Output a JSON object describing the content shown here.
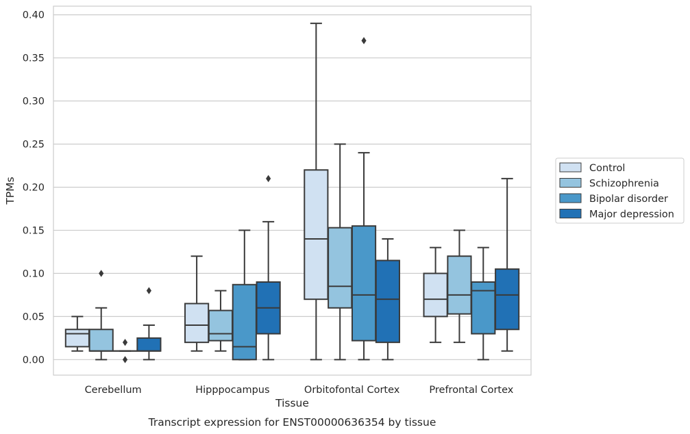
{
  "chart_data": {
    "type": "box",
    "caption": "Transcript expression for ENST00000636354 by tissue",
    "xlabel": "Tissue",
    "ylabel": "TPMs",
    "ylim": [
      -0.018,
      0.41
    ],
    "yticks": [
      0.0,
      0.05,
      0.1,
      0.15,
      0.2,
      0.25,
      0.3,
      0.35,
      0.4
    ],
    "ytick_labels": [
      "0.00",
      "0.05",
      "0.10",
      "0.15",
      "0.20",
      "0.25",
      "0.30",
      "0.35",
      "0.40"
    ],
    "grid": "horizontal",
    "legend_position": "right",
    "categories": [
      "Cerebellum",
      "Hipppocampus",
      "Orbitofontal Cortex",
      "Prefrontal Cortex"
    ],
    "series": [
      {
        "name": "Control",
        "color": "#d0e1f2",
        "boxes": [
          {
            "whislo": 0.01,
            "q1": 0.015,
            "med": 0.03,
            "q3": 0.035,
            "whishi": 0.05,
            "fliers": []
          },
          {
            "whislo": 0.01,
            "q1": 0.02,
            "med": 0.04,
            "q3": 0.065,
            "whishi": 0.12,
            "fliers": []
          },
          {
            "whislo": 0.0,
            "q1": 0.07,
            "med": 0.14,
            "q3": 0.22,
            "whishi": 0.39,
            "fliers": []
          },
          {
            "whislo": 0.02,
            "q1": 0.05,
            "med": 0.07,
            "q3": 0.1,
            "whishi": 0.13,
            "fliers": []
          }
        ]
      },
      {
        "name": "Schizophrenia",
        "color": "#94c4df",
        "boxes": [
          {
            "whislo": 0.0,
            "q1": 0.01,
            "med": 0.01,
            "q3": 0.035,
            "whishi": 0.06,
            "fliers": [
              0.1
            ]
          },
          {
            "whislo": 0.01,
            "q1": 0.022,
            "med": 0.03,
            "q3": 0.057,
            "whishi": 0.08,
            "fliers": []
          },
          {
            "whislo": 0.0,
            "q1": 0.06,
            "med": 0.085,
            "q3": 0.153,
            "whishi": 0.25,
            "fliers": []
          },
          {
            "whislo": 0.02,
            "q1": 0.053,
            "med": 0.075,
            "q3": 0.12,
            "whishi": 0.15,
            "fliers": []
          }
        ]
      },
      {
        "name": "Bipolar disorder",
        "color": "#4a98c9",
        "boxes": [
          {
            "whislo": 0.01,
            "q1": 0.01,
            "med": 0.01,
            "q3": 0.01,
            "whishi": 0.01,
            "fliers": [
              0.02,
              0.0
            ]
          },
          {
            "whislo": 0.0,
            "q1": 0.0,
            "med": 0.015,
            "q3": 0.087,
            "whishi": 0.15,
            "fliers": []
          },
          {
            "whislo": 0.0,
            "q1": 0.022,
            "med": 0.075,
            "q3": 0.155,
            "whishi": 0.24,
            "fliers": [
              0.37
            ]
          },
          {
            "whislo": 0.0,
            "q1": 0.03,
            "med": 0.08,
            "q3": 0.09,
            "whishi": 0.13,
            "fliers": []
          }
        ]
      },
      {
        "name": "Major depression",
        "color": "#2171b5",
        "boxes": [
          {
            "whislo": 0.0,
            "q1": 0.01,
            "med": 0.01,
            "q3": 0.025,
            "whishi": 0.04,
            "fliers": [
              0.08
            ]
          },
          {
            "whislo": 0.0,
            "q1": 0.03,
            "med": 0.06,
            "q3": 0.09,
            "whishi": 0.16,
            "fliers": [
              0.21
            ]
          },
          {
            "whislo": 0.0,
            "q1": 0.02,
            "med": 0.07,
            "q3": 0.115,
            "whishi": 0.14,
            "fliers": []
          },
          {
            "whislo": 0.01,
            "q1": 0.035,
            "med": 0.075,
            "q3": 0.105,
            "whishi": 0.21,
            "fliers": []
          }
        ]
      }
    ]
  }
}
